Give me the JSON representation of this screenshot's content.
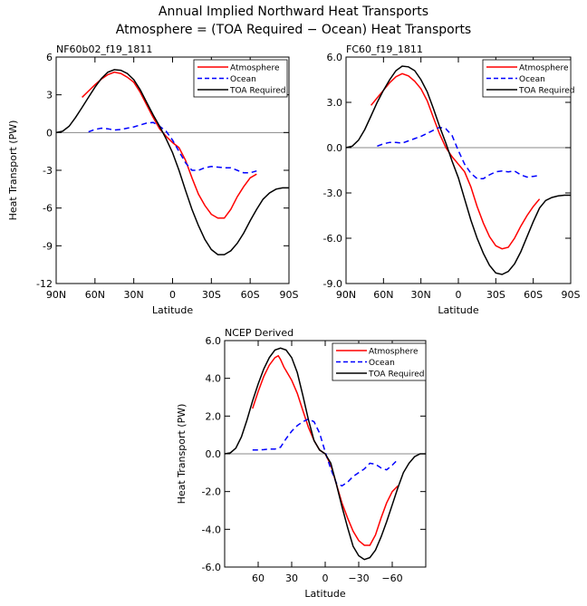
{
  "title_line1": "Annual Implied Northward Heat Transports",
  "title_line2": "Atmosphere = (TOA Required − Ocean) Heat Transports",
  "colors": {
    "atmosphere": "#ff0000",
    "ocean": "#0000ff",
    "toa": "#000000",
    "zero": "#888888"
  },
  "chart_data": [
    {
      "type": "line",
      "title": "NF60b02_f19_1811",
      "xlabel": "Latitude",
      "ylabel": "Heat Transport (PW)",
      "xlim": [
        90,
        -90
      ],
      "ylim": [
        -12,
        6
      ],
      "xticks": [
        90,
        60,
        30,
        0,
        -30,
        -60,
        -90
      ],
      "xticklabels": [
        "90N",
        "60N",
        "30N",
        "0",
        "30S",
        "60S",
        "90S"
      ],
      "yticks": [
        6,
        3,
        0,
        -3,
        -6,
        -9,
        -12
      ],
      "yticklabels": [
        "6",
        "3",
        "0",
        "-3",
        "-6",
        "-9",
        "-12"
      ],
      "legend": [
        "Atmosphere",
        "Ocean",
        "TOA Required"
      ],
      "series": [
        {
          "name": "Atmosphere",
          "x": [
            70,
            65,
            60,
            55,
            50,
            45,
            40,
            35,
            30,
            25,
            20,
            15,
            10,
            5,
            0,
            -5,
            -10,
            -15,
            -20,
            -25,
            -30,
            -35,
            -40,
            -45,
            -50,
            -55,
            -60,
            -65
          ],
          "y": [
            2.8,
            3.3,
            3.8,
            4.25,
            4.6,
            4.8,
            4.7,
            4.4,
            4.0,
            3.2,
            2.2,
            1.2,
            0.3,
            -0.3,
            -0.8,
            -1.2,
            -2.2,
            -3.6,
            -4.9,
            -5.8,
            -6.5,
            -6.8,
            -6.8,
            -6.1,
            -5.1,
            -4.3,
            -3.6,
            -3.3
          ]
        },
        {
          "name": "Ocean",
          "x": [
            65,
            60,
            55,
            50,
            45,
            40,
            35,
            30,
            25,
            20,
            15,
            10,
            5,
            0,
            -5,
            -10,
            -15,
            -20,
            -25,
            -30,
            -35,
            -40,
            -45,
            -50,
            -55,
            -60,
            -65
          ],
          "y": [
            0.05,
            0.25,
            0.35,
            0.3,
            0.2,
            0.25,
            0.35,
            0.45,
            0.6,
            0.75,
            0.8,
            0.5,
            0.1,
            -0.6,
            -1.5,
            -2.4,
            -3.0,
            -3.0,
            -2.8,
            -2.7,
            -2.75,
            -2.8,
            -2.8,
            -3.0,
            -3.2,
            -3.2,
            -3.05
          ]
        },
        {
          "name": "TOA Required",
          "x": [
            90,
            85,
            80,
            75,
            70,
            65,
            60,
            55,
            50,
            45,
            40,
            35,
            30,
            25,
            20,
            15,
            10,
            5,
            0,
            -5,
            -10,
            -15,
            -20,
            -25,
            -30,
            -35,
            -40,
            -45,
            -50,
            -55,
            -60,
            -65,
            -70,
            -75,
            -80,
            -85,
            -90
          ],
          "y": [
            0,
            0.1,
            0.5,
            1.2,
            2.0,
            2.8,
            3.6,
            4.3,
            4.8,
            5.0,
            4.95,
            4.7,
            4.2,
            3.4,
            2.4,
            1.4,
            0.5,
            -0.5,
            -1.6,
            -3.0,
            -4.6,
            -6.1,
            -7.4,
            -8.5,
            -9.3,
            -9.7,
            -9.7,
            -9.4,
            -8.8,
            -8.0,
            -7.0,
            -6.1,
            -5.3,
            -4.8,
            -4.5,
            -4.4,
            -4.4
          ]
        }
      ]
    },
    {
      "type": "line",
      "title": "FC60_f19_1811",
      "xlabel": "Latitude",
      "ylabel": "",
      "xlim": [
        90,
        -90
      ],
      "ylim": [
        -9,
        6
      ],
      "xticks": [
        90,
        60,
        30,
        0,
        -30,
        -60,
        -90
      ],
      "xticklabels": [
        "90N",
        "60N",
        "30N",
        "0",
        "30S",
        "60S",
        "90S"
      ],
      "yticks": [
        6,
        3,
        0,
        -3,
        -6,
        -9
      ],
      "yticklabels": [
        "6.0",
        "3.0",
        "0.0",
        "-3.0",
        "-6.0",
        "-9.0"
      ],
      "legend": [
        "Atmosphere",
        "Ocean",
        "TOA Required"
      ],
      "series": [
        {
          "name": "Atmosphere",
          "x": [
            70,
            65,
            60,
            55,
            50,
            45,
            40,
            35,
            30,
            25,
            20,
            15,
            10,
            5,
            0,
            -5,
            -10,
            -15,
            -20,
            -25,
            -30,
            -35,
            -40,
            -45,
            -50,
            -55,
            -60,
            -65
          ],
          "y": [
            2.8,
            3.3,
            3.8,
            4.3,
            4.7,
            4.9,
            4.75,
            4.4,
            3.9,
            3.1,
            2.0,
            0.9,
            0,
            -0.6,
            -1.1,
            -1.6,
            -2.6,
            -3.9,
            -5.0,
            -5.9,
            -6.5,
            -6.7,
            -6.6,
            -6.0,
            -5.2,
            -4.5,
            -3.9,
            -3.4
          ]
        },
        {
          "name": "Ocean",
          "x": [
            65,
            60,
            55,
            50,
            45,
            40,
            35,
            30,
            25,
            20,
            15,
            10,
            5,
            0,
            -5,
            -10,
            -15,
            -20,
            -25,
            -30,
            -35,
            -40,
            -45,
            -50,
            -55,
            -60,
            -65
          ],
          "y": [
            0.1,
            0.25,
            0.35,
            0.35,
            0.3,
            0.45,
            0.6,
            0.75,
            0.95,
            1.15,
            1.35,
            1.25,
            0.8,
            -0.2,
            -1.1,
            -1.7,
            -2.05,
            -2.05,
            -1.8,
            -1.6,
            -1.55,
            -1.6,
            -1.55,
            -1.8,
            -1.95,
            -1.9,
            -1.85
          ]
        },
        {
          "name": "TOA Required",
          "x": [
            90,
            85,
            80,
            75,
            70,
            65,
            60,
            55,
            50,
            45,
            40,
            35,
            30,
            25,
            20,
            15,
            10,
            5,
            0,
            -5,
            -10,
            -15,
            -20,
            -25,
            -30,
            -35,
            -40,
            -45,
            -50,
            -55,
            -60,
            -65,
            -70,
            -75,
            -80,
            -85,
            -90
          ],
          "y": [
            0,
            0.1,
            0.5,
            1.2,
            2.1,
            3.0,
            3.8,
            4.5,
            5.1,
            5.4,
            5.35,
            5.1,
            4.5,
            3.7,
            2.6,
            1.4,
            0.3,
            -0.9,
            -2.0,
            -3.4,
            -4.8,
            -6.0,
            -7.0,
            -7.8,
            -8.3,
            -8.4,
            -8.2,
            -7.7,
            -6.9,
            -5.9,
            -4.9,
            -4.0,
            -3.5,
            -3.3,
            -3.2,
            -3.15,
            -3.15
          ]
        }
      ]
    },
    {
      "type": "line",
      "title": "NCEP Derived",
      "xlabel": "Latitude",
      "ylabel": "Heat Transport (PW)",
      "xlim": [
        90,
        -90
      ],
      "ylim": [
        -6,
        6
      ],
      "xticks": [
        60,
        30,
        0,
        -30,
        -60
      ],
      "xticklabels": [
        "60",
        "30",
        "0",
        "−30",
        "−60"
      ],
      "yticks": [
        6,
        4,
        2,
        0,
        -2,
        -4,
        -6
      ],
      "yticklabels": [
        "6.0",
        "4.0",
        "2.0",
        "0.0",
        "-2.0",
        "-4.0",
        "-6.0"
      ],
      "legend": [
        "Atmosphere",
        "Ocean",
        "TOA Required"
      ],
      "series": [
        {
          "name": "Atmosphere",
          "x": [
            65,
            60,
            55,
            50,
            45,
            42,
            40,
            37,
            35,
            30,
            25,
            20,
            15,
            10,
            5,
            0,
            -5,
            -10,
            -15,
            -20,
            -25,
            -30,
            -35,
            -40,
            -45,
            -50,
            -55,
            -60,
            -65
          ],
          "y": [
            2.4,
            3.3,
            4.1,
            4.7,
            5.1,
            5.2,
            5.0,
            4.6,
            4.4,
            3.9,
            3.2,
            2.3,
            1.4,
            0.7,
            0.2,
            0.0,
            -0.6,
            -1.6,
            -2.6,
            -3.4,
            -4.1,
            -4.6,
            -4.85,
            -4.85,
            -4.3,
            -3.4,
            -2.6,
            -2.0,
            -1.7
          ]
        },
        {
          "name": "Ocean",
          "x": [
            65,
            60,
            55,
            50,
            45,
            40,
            35,
            30,
            25,
            20,
            15,
            10,
            5,
            0,
            -5,
            -10,
            -15,
            -20,
            -25,
            -30,
            -35,
            -40,
            -45,
            -50,
            -55,
            -60,
            -65
          ],
          "y": [
            0.2,
            0.2,
            0.22,
            0.25,
            0.25,
            0.35,
            0.8,
            1.2,
            1.5,
            1.7,
            1.85,
            1.7,
            1.1,
            0.1,
            -0.8,
            -1.55,
            -1.7,
            -1.5,
            -1.2,
            -1.0,
            -0.8,
            -0.5,
            -0.55,
            -0.75,
            -0.85,
            -0.6,
            -0.3
          ]
        },
        {
          "name": "TOA Required",
          "x": [
            90,
            85,
            80,
            75,
            70,
            65,
            60,
            55,
            50,
            45,
            40,
            35,
            30,
            25,
            20,
            15,
            10,
            5,
            0,
            -5,
            -10,
            -15,
            -20,
            -25,
            -30,
            -35,
            -40,
            -45,
            -50,
            -55,
            -60,
            -65,
            -70,
            -75,
            -80,
            -85,
            -90
          ],
          "y": [
            0,
            0.05,
            0.3,
            0.9,
            1.8,
            2.8,
            3.7,
            4.5,
            5.1,
            5.5,
            5.6,
            5.5,
            5.1,
            4.3,
            3.1,
            1.8,
            0.7,
            0.2,
            0,
            -0.5,
            -1.6,
            -2.8,
            -3.9,
            -4.9,
            -5.4,
            -5.6,
            -5.5,
            -5.1,
            -4.4,
            -3.6,
            -2.7,
            -1.8,
            -1.0,
            -0.5,
            -0.15,
            0,
            0
          ]
        }
      ]
    }
  ]
}
